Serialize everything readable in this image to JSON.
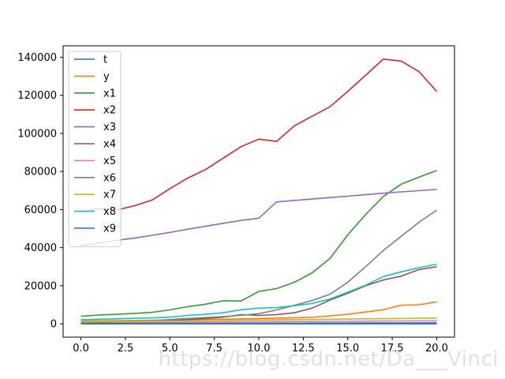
{
  "chart_data": {
    "type": "line",
    "x": [
      0,
      1,
      2,
      3,
      4,
      5,
      6,
      7,
      8,
      9,
      10,
      11,
      12,
      13,
      14,
      15,
      16,
      17,
      18,
      19,
      20
    ],
    "xlim": [
      -1,
      21
    ],
    "ylim": [
      -7000,
      146000
    ],
    "xticks": [
      0.0,
      2.5,
      5.0,
      7.5,
      10.0,
      12.5,
      15.0,
      17.5,
      20.0
    ],
    "xtick_labels": [
      "0.0",
      "2.5",
      "5.0",
      "7.5",
      "10.0",
      "12.5",
      "15.0",
      "17.5",
      "20.0"
    ],
    "yticks": [
      0,
      20000,
      40000,
      60000,
      80000,
      100000,
      120000,
      140000
    ],
    "ytick_labels": [
      "0",
      "20000",
      "40000",
      "60000",
      "80000",
      "100000",
      "120000",
      "140000"
    ],
    "legend_position": "upper-left",
    "grid": false,
    "series": [
      {
        "name": "t",
        "color": "#1f77b4",
        "values": [
          0,
          1,
          2,
          3,
          4,
          5,
          6,
          7,
          8,
          9,
          10,
          11,
          12,
          13,
          14,
          15,
          16,
          17,
          18,
          19,
          20
        ]
      },
      {
        "name": "y",
        "color": "#ff7f0e",
        "values": [
          1500,
          1600,
          1700,
          1800,
          1900,
          2000,
          2100,
          2300,
          2400,
          2600,
          2800,
          3000,
          3200,
          3400,
          4200,
          5000,
          6200,
          7400,
          9800,
          10000,
          11500
        ]
      },
      {
        "name": "x1",
        "color": "#2ca02c",
        "values": [
          4000,
          4600,
          5000,
          5500,
          6000,
          7300,
          9000,
          10300,
          12100,
          12000,
          17000,
          18500,
          21800,
          26800,
          34300,
          46700,
          57400,
          66900,
          73300,
          77000,
          80500
        ]
      },
      {
        "name": "x2",
        "color": "#d62728",
        "values": [
          58600,
          60500,
          59700,
          62000,
          65000,
          71000,
          76500,
          81000,
          87000,
          93000,
          97000,
          95800,
          104000,
          109000,
          114000,
          122000,
          130500,
          139000,
          138000,
          132500,
          122000
        ]
      },
      {
        "name": "x3",
        "color": "#9467bd",
        "values": [
          41000,
          42500,
          43800,
          45000,
          46500,
          48000,
          49700,
          51200,
          52800,
          54300,
          55500,
          64000,
          64800,
          65500,
          66300,
          67000,
          67800,
          68600,
          69300,
          69900,
          70600
        ]
      },
      {
        "name": "x4",
        "color": "#8c564b",
        "values": [
          800,
          900,
          1000,
          1200,
          1500,
          1800,
          2300,
          2800,
          3500,
          4800,
          4400,
          4800,
          5800,
          8200,
          12500,
          16000,
          20000,
          23000,
          25000,
          28500,
          30000
        ]
      },
      {
        "name": "x5",
        "color": "#e377c2",
        "values": [
          600,
          650,
          700,
          750,
          800,
          850,
          900,
          950,
          1000,
          1050,
          1100,
          1150,
          1200,
          1250,
          1300,
          1350,
          1400,
          1450,
          1500,
          1550,
          1600
        ]
      },
      {
        "name": "x6",
        "color": "#7f7f7f",
        "values": [
          600,
          800,
          1000,
          1300,
          1700,
          2200,
          2800,
          3300,
          3800,
          4500,
          5300,
          7300,
          9700,
          12300,
          15500,
          21800,
          30000,
          38500,
          46000,
          53300,
          59700
        ]
      },
      {
        "name": "x7",
        "color": "#bcbd22",
        "values": [
          1000,
          1100,
          1200,
          1300,
          1400,
          1500,
          1600,
          1700,
          1800,
          1900,
          2000,
          2100,
          2200,
          2300,
          2400,
          2500,
          2600,
          2700,
          2800,
          2900,
          3000
        ]
      },
      {
        "name": "x8",
        "color": "#17becf",
        "values": [
          2200,
          2400,
          2600,
          2900,
          3100,
          3500,
          4400,
          5000,
          5800,
          7400,
          8200,
          8500,
          9500,
          10700,
          13000,
          16600,
          20300,
          24800,
          27300,
          29500,
          31300
        ]
      },
      {
        "name": "x9",
        "color": "#1f77b4",
        "values": [
          100,
          120,
          140,
          160,
          180,
          200,
          220,
          240,
          260,
          280,
          300,
          320,
          340,
          360,
          380,
          400,
          420,
          440,
          460,
          480,
          500
        ]
      }
    ]
  },
  "watermark": "https://blog.csdn.net/Da___Vinci"
}
